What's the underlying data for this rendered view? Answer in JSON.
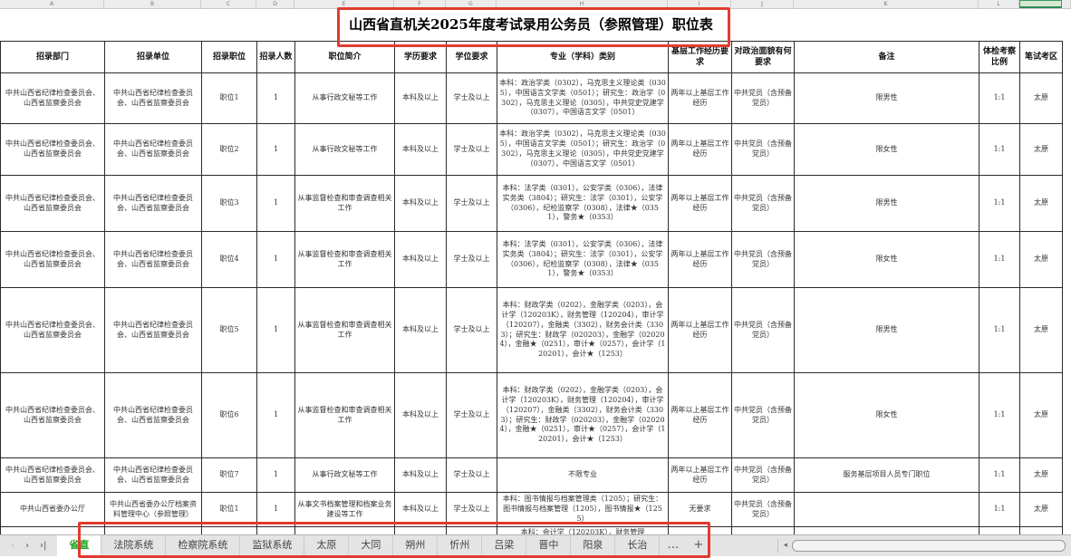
{
  "column_strip": {
    "letters": [
      "A",
      "B",
      "C",
      "D",
      "E",
      "F",
      "G",
      "H",
      "I",
      "J",
      "K",
      "L"
    ]
  },
  "title": "山西省直机关2025年度考试录用公务员（参照管理）职位表",
  "table": {
    "headers": [
      "招录部门",
      "招录单位",
      "招录职位",
      "招录人数",
      "职位简介",
      "学历要求",
      "学位要求",
      "专业（学科）类别",
      "基层工作经历要求",
      "对政治面貌有何要求",
      "备注",
      "体检考察比例",
      "笔试考区"
    ],
    "rows": [
      [
        "中共山西省纪律检查委员会、山西省监察委员会",
        "中共山西省纪律检查委员会、山西省监察委员会",
        "职位1",
        "1",
        "从事行政文秘等工作",
        "本科及以上",
        "学士及以上",
        "本科：政治学类（0302），马克思主义理论类（0305），中国语言文学类（0501）；研究生：政治学（0302），马克思主义理论（0305），中共党史党建学（0307），中国语言文学（0501）",
        "两年以上基层工作经历",
        "中共党员（含预备党员）",
        "限男性",
        "1:1",
        "太原"
      ],
      [
        "中共山西省纪律检查委员会、山西省监察委员会",
        "中共山西省纪律检查委员会、山西省监察委员会",
        "职位2",
        "1",
        "从事行政文秘等工作",
        "本科及以上",
        "学士及以上",
        "本科：政治学类（0302），马克思主义理论类（0305），中国语言文学类（0501）；研究生：政治学（0302），马克思主义理论（0305），中共党史党建学（0307），中国语言文学（0501）",
        "两年以上基层工作经历",
        "中共党员（含预备党员）",
        "限女性",
        "1:1",
        "太原"
      ],
      [
        "中共山西省纪律检查委员会、山西省监察委员会",
        "中共山西省纪律检查委员会、山西省监察委员会",
        "职位3",
        "1",
        "从事监督检查和审查调查相关工作",
        "本科及以上",
        "学士及以上",
        "本科：法学类（0301），公安学类（0306），法律实务类（3804）；研究生：法学（0301），公安学（0306），纪检监察学（0308），法律★（0351），警务★（0353）",
        "两年以上基层工作经历",
        "中共党员（含预备党员）",
        "限男性",
        "1:1",
        "太原"
      ],
      [
        "中共山西省纪律检查委员会、山西省监察委员会",
        "中共山西省纪律检查委员会、山西省监察委员会",
        "职位4",
        "1",
        "从事监督检查和审查调查相关工作",
        "本科及以上",
        "学士及以上",
        "本科：法学类（0301），公安学类（0306），法律实务类（3804）；研究生：法学（0301），公安学（0306），纪检监察学（0308），法律★（0351），警务★（0353）",
        "两年以上基层工作经历",
        "中共党员（含预备党员）",
        "限女性",
        "1:1",
        "太原"
      ],
      [
        "中共山西省纪律检查委员会、山西省监察委员会",
        "中共山西省纪律检查委员会、山西省监察委员会",
        "职位5",
        "1",
        "从事监督检查和审查调查相关工作",
        "本科及以上",
        "学士及以上",
        "本科：财政学类（0202），金融学类（0203），会计学（120203K），财务管理（120204），审计学（120207），金融类（3302），财务会计类（3303）；研究生：财政学（020203），金融学（020204），金融★（0251），审计★（0257），会计学（120201），会计★（1253）",
        "两年以上基层工作经历",
        "中共党员（含预备党员）",
        "限男性",
        "1:1",
        "太原"
      ],
      [
        "中共山西省纪律检查委员会、山西省监察委员会",
        "中共山西省纪律检查委员会、山西省监察委员会",
        "职位6",
        "1",
        "从事监督检查和审查调查相关工作",
        "本科及以上",
        "学士及以上",
        "本科：财政学类（0202），金融学类（0203），会计学（120203K），财务管理（120204），审计学（120207），金融类（3302），财务会计类（3303）；研究生：财政学（020203），金融学（020204），金融★（0251），审计★（0257），会计学（120201），会计★（1253）",
        "两年以上基层工作经历",
        "中共党员（含预备党员）",
        "限女性",
        "1:1",
        "太原"
      ],
      [
        "中共山西省纪律检查委员会、山西省监察委员会",
        "中共山西省纪律检查委员会、山西省监察委员会",
        "职位7",
        "1",
        "从事行政文秘等工作",
        "本科及以上",
        "学士及以上",
        "不限专业",
        "两年以上基层工作经历",
        "中共党员（含预备党员）",
        "服务基层项目人员专门职位",
        "1:1",
        "太原"
      ],
      [
        "中共山西省委办公厅",
        "中共山西省委办公厅档案资料管理中心（参照管理）",
        "职位1",
        "1",
        "从事文书档案管理和档案业务建设等工作",
        "本科及以上",
        "学士及以上",
        "本科：图书情报与档案管理类（1205）；研究生：图书情报与档案管理（1205），图书情报★（1255）",
        "无要求",
        "中共党员（含预备党员）",
        "",
        "1:1",
        "太原"
      ]
    ],
    "partial_row_cells": [
      "",
      "",
      "",
      "",
      "",
      "",
      "",
      "本科：会计学（120203K），财务管理",
      "",
      "",
      "",
      "",
      ""
    ]
  },
  "tabbar": {
    "nav": {
      "prev": "‹",
      "next": "›",
      "last": "›|"
    },
    "tabs": [
      {
        "label": "省直",
        "active": true
      },
      {
        "label": "法院系统",
        "active": false
      },
      {
        "label": "检察院系统",
        "active": false
      },
      {
        "label": "监狱系统",
        "active": false
      },
      {
        "label": "太原",
        "active": false
      },
      {
        "label": "大同",
        "active": false
      },
      {
        "label": "朔州",
        "active": false
      },
      {
        "label": "忻州",
        "active": false
      },
      {
        "label": "吕梁",
        "active": false
      },
      {
        "label": "晋中",
        "active": false
      },
      {
        "label": "阳泉",
        "active": false
      },
      {
        "label": "长治",
        "active": false
      }
    ],
    "more_label": "…",
    "add_label": "+",
    "scroll_arrow": "◂"
  },
  "colors": {
    "annotation_red": "#e23b2e",
    "active_tab_green": "#21a121",
    "selected_column_green": "#2e8b57"
  }
}
